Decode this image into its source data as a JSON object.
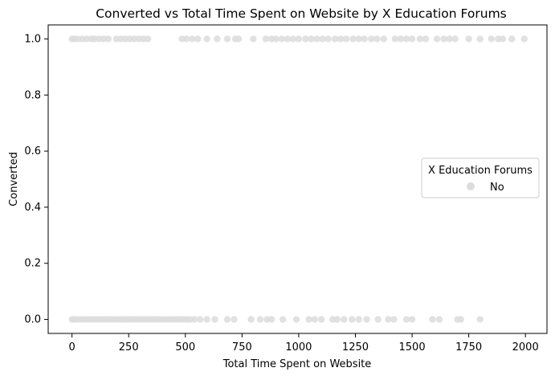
{
  "chart_data": {
    "type": "scatter",
    "title": "Converted vs Total Time Spent on Website by X Education Forums",
    "xlabel": "Total Time Spent on Website",
    "ylabel": "Converted",
    "xlim": [
      -105,
      2095
    ],
    "ylim": [
      -0.05,
      1.05
    ],
    "x_ticks": [
      0,
      250,
      500,
      750,
      1000,
      1250,
      1500,
      1750,
      2000
    ],
    "x_tick_labels": [
      "0",
      "250",
      "500",
      "750",
      "1000",
      "1250",
      "1500",
      "1750",
      "2000"
    ],
    "y_ticks": [
      0.0,
      0.2,
      0.4,
      0.6,
      0.8,
      1.0
    ],
    "y_tick_labels": [
      "0.0",
      "0.2",
      "0.4",
      "0.6",
      "0.8",
      "1.0"
    ],
    "grid": false,
    "legend": {
      "title": "X Education Forums",
      "placement": "center-right",
      "entries": [
        {
          "label": "No",
          "color": "#dcdcdc"
        }
      ]
    },
    "series": [
      {
        "name": "No",
        "color": "#dcdcdc",
        "points": [
          {
            "x": 0,
            "y": 1
          },
          {
            "x": 10,
            "y": 1
          },
          {
            "x": 25,
            "y": 1
          },
          {
            "x": 45,
            "y": 1
          },
          {
            "x": 65,
            "y": 1
          },
          {
            "x": 85,
            "y": 1
          },
          {
            "x": 100,
            "y": 1
          },
          {
            "x": 120,
            "y": 1
          },
          {
            "x": 140,
            "y": 1
          },
          {
            "x": 160,
            "y": 1
          },
          {
            "x": 195,
            "y": 1
          },
          {
            "x": 215,
            "y": 1
          },
          {
            "x": 235,
            "y": 1
          },
          {
            "x": 255,
            "y": 1
          },
          {
            "x": 275,
            "y": 1
          },
          {
            "x": 295,
            "y": 1
          },
          {
            "x": 315,
            "y": 1
          },
          {
            "x": 335,
            "y": 1
          },
          {
            "x": 485,
            "y": 1
          },
          {
            "x": 505,
            "y": 1
          },
          {
            "x": 530,
            "y": 1
          },
          {
            "x": 555,
            "y": 1
          },
          {
            "x": 595,
            "y": 1
          },
          {
            "x": 640,
            "y": 1
          },
          {
            "x": 685,
            "y": 1
          },
          {
            "x": 720,
            "y": 1
          },
          {
            "x": 735,
            "y": 1
          },
          {
            "x": 800,
            "y": 1
          },
          {
            "x": 855,
            "y": 1
          },
          {
            "x": 880,
            "y": 1
          },
          {
            "x": 900,
            "y": 1
          },
          {
            "x": 925,
            "y": 1
          },
          {
            "x": 950,
            "y": 1
          },
          {
            "x": 975,
            "y": 1
          },
          {
            "x": 1000,
            "y": 1
          },
          {
            "x": 1030,
            "y": 1
          },
          {
            "x": 1055,
            "y": 1
          },
          {
            "x": 1080,
            "y": 1
          },
          {
            "x": 1105,
            "y": 1
          },
          {
            "x": 1130,
            "y": 1
          },
          {
            "x": 1160,
            "y": 1
          },
          {
            "x": 1185,
            "y": 1
          },
          {
            "x": 1210,
            "y": 1
          },
          {
            "x": 1240,
            "y": 1
          },
          {
            "x": 1265,
            "y": 1
          },
          {
            "x": 1290,
            "y": 1
          },
          {
            "x": 1320,
            "y": 1
          },
          {
            "x": 1345,
            "y": 1
          },
          {
            "x": 1375,
            "y": 1
          },
          {
            "x": 1425,
            "y": 1
          },
          {
            "x": 1450,
            "y": 1
          },
          {
            "x": 1475,
            "y": 1
          },
          {
            "x": 1500,
            "y": 1
          },
          {
            "x": 1535,
            "y": 1
          },
          {
            "x": 1560,
            "y": 1
          },
          {
            "x": 1610,
            "y": 1
          },
          {
            "x": 1640,
            "y": 1
          },
          {
            "x": 1665,
            "y": 1
          },
          {
            "x": 1690,
            "y": 1
          },
          {
            "x": 1750,
            "y": 1
          },
          {
            "x": 1800,
            "y": 1
          },
          {
            "x": 1850,
            "y": 1
          },
          {
            "x": 1880,
            "y": 1
          },
          {
            "x": 1900,
            "y": 1
          },
          {
            "x": 1940,
            "y": 1
          },
          {
            "x": 1995,
            "y": 1
          },
          {
            "x": 0,
            "y": 0
          },
          {
            "x": 10,
            "y": 0
          },
          {
            "x": 25,
            "y": 0
          },
          {
            "x": 40,
            "y": 0
          },
          {
            "x": 55,
            "y": 0
          },
          {
            "x": 70,
            "y": 0
          },
          {
            "x": 85,
            "y": 0
          },
          {
            "x": 100,
            "y": 0
          },
          {
            "x": 115,
            "y": 0
          },
          {
            "x": 130,
            "y": 0
          },
          {
            "x": 145,
            "y": 0
          },
          {
            "x": 160,
            "y": 0
          },
          {
            "x": 175,
            "y": 0
          },
          {
            "x": 190,
            "y": 0
          },
          {
            "x": 205,
            "y": 0
          },
          {
            "x": 220,
            "y": 0
          },
          {
            "x": 235,
            "y": 0
          },
          {
            "x": 250,
            "y": 0
          },
          {
            "x": 265,
            "y": 0
          },
          {
            "x": 280,
            "y": 0
          },
          {
            "x": 295,
            "y": 0
          },
          {
            "x": 310,
            "y": 0
          },
          {
            "x": 325,
            "y": 0
          },
          {
            "x": 340,
            "y": 0
          },
          {
            "x": 355,
            "y": 0
          },
          {
            "x": 370,
            "y": 0
          },
          {
            "x": 385,
            "y": 0
          },
          {
            "x": 400,
            "y": 0
          },
          {
            "x": 415,
            "y": 0
          },
          {
            "x": 430,
            "y": 0
          },
          {
            "x": 445,
            "y": 0
          },
          {
            "x": 460,
            "y": 0
          },
          {
            "x": 475,
            "y": 0
          },
          {
            "x": 490,
            "y": 0
          },
          {
            "x": 505,
            "y": 0
          },
          {
            "x": 520,
            "y": 0
          },
          {
            "x": 540,
            "y": 0
          },
          {
            "x": 565,
            "y": 0
          },
          {
            "x": 595,
            "y": 0
          },
          {
            "x": 630,
            "y": 0
          },
          {
            "x": 685,
            "y": 0
          },
          {
            "x": 715,
            "y": 0
          },
          {
            "x": 790,
            "y": 0
          },
          {
            "x": 830,
            "y": 0
          },
          {
            "x": 860,
            "y": 0
          },
          {
            "x": 880,
            "y": 0
          },
          {
            "x": 930,
            "y": 0
          },
          {
            "x": 990,
            "y": 0
          },
          {
            "x": 1045,
            "y": 0
          },
          {
            "x": 1070,
            "y": 0
          },
          {
            "x": 1100,
            "y": 0
          },
          {
            "x": 1150,
            "y": 0
          },
          {
            "x": 1170,
            "y": 0
          },
          {
            "x": 1200,
            "y": 0
          },
          {
            "x": 1235,
            "y": 0
          },
          {
            "x": 1265,
            "y": 0
          },
          {
            "x": 1300,
            "y": 0
          },
          {
            "x": 1350,
            "y": 0
          },
          {
            "x": 1395,
            "y": 0
          },
          {
            "x": 1420,
            "y": 0
          },
          {
            "x": 1475,
            "y": 0
          },
          {
            "x": 1500,
            "y": 0
          },
          {
            "x": 1590,
            "y": 0
          },
          {
            "x": 1620,
            "y": 0
          },
          {
            "x": 1700,
            "y": 0
          },
          {
            "x": 1715,
            "y": 0
          },
          {
            "x": 1800,
            "y": 0
          }
        ]
      }
    ]
  }
}
